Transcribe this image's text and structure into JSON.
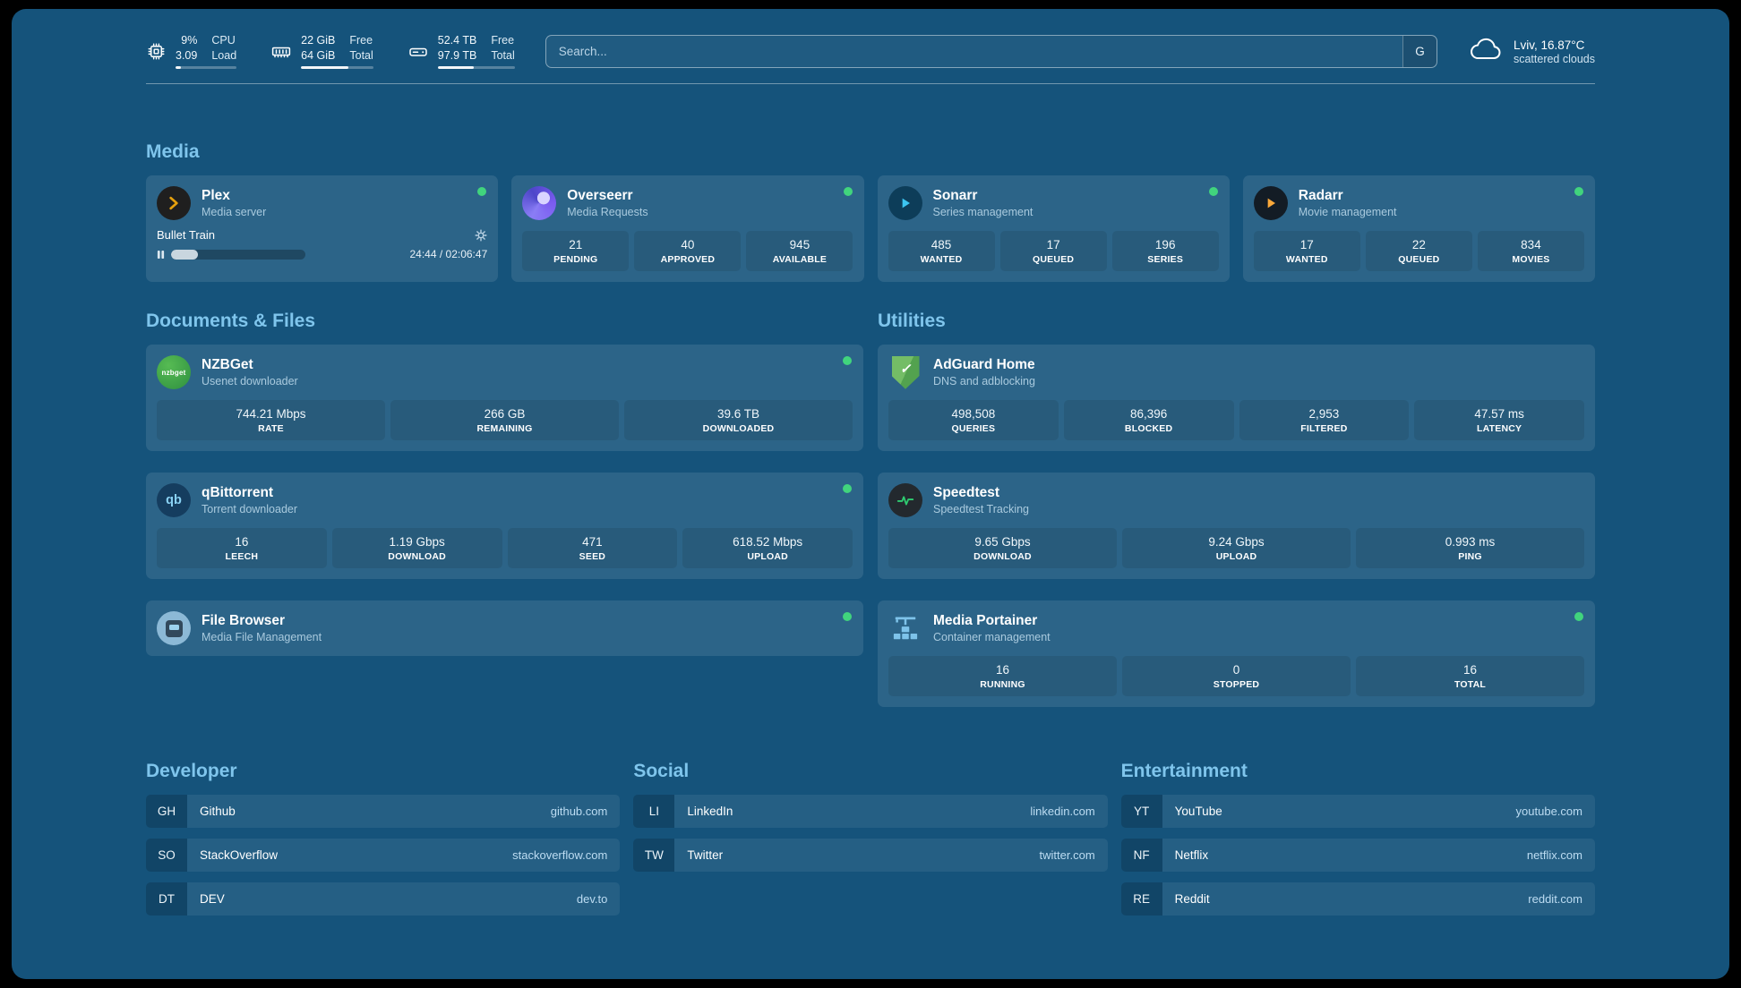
{
  "topbar": {
    "resources": [
      {
        "id": "cpu",
        "col1": [
          "9%",
          "3.09"
        ],
        "col2": [
          "CPU",
          "Load"
        ],
        "bar_percent": 9
      },
      {
        "id": "memory",
        "col1": [
          "22 GiB",
          "64 GiB"
        ],
        "col2": [
          "Free",
          "Total"
        ],
        "bar_percent": 66
      },
      {
        "id": "disk",
        "col1": [
          "52.4 TB",
          "97.9 TB"
        ],
        "col2": [
          "Free",
          "Total"
        ],
        "bar_percent": 47
      }
    ],
    "search": {
      "placeholder": "Search...",
      "provider": "G"
    },
    "weather": {
      "location_temp": "Lviv, 16.87°C",
      "condition": "scattered clouds"
    }
  },
  "sections": {
    "media": {
      "title": "Media",
      "cards": [
        {
          "name": "Plex",
          "desc": "Media server",
          "online": true,
          "now_playing": {
            "title": "Bullet Train",
            "time": "24:44 / 02:06:47",
            "progress_percent": 20
          }
        },
        {
          "name": "Overseerr",
          "desc": "Media Requests",
          "online": true,
          "stats": [
            {
              "value": "21",
              "label": "PENDING"
            },
            {
              "value": "40",
              "label": "APPROVED"
            },
            {
              "value": "945",
              "label": "AVAILABLE"
            }
          ]
        },
        {
          "name": "Sonarr",
          "desc": "Series management",
          "online": true,
          "stats": [
            {
              "value": "485",
              "label": "WANTED"
            },
            {
              "value": "17",
              "label": "QUEUED"
            },
            {
              "value": "196",
              "label": "SERIES"
            }
          ]
        },
        {
          "name": "Radarr",
          "desc": "Movie management",
          "online": true,
          "stats": [
            {
              "value": "17",
              "label": "WANTED"
            },
            {
              "value": "22",
              "label": "QUEUED"
            },
            {
              "value": "834",
              "label": "MOVIES"
            }
          ]
        }
      ]
    },
    "documents": {
      "title": "Documents & Files",
      "cards": [
        {
          "name": "NZBGet",
          "desc": "Usenet downloader",
          "online": true,
          "icon_text": "nzbget",
          "stats": [
            {
              "value": "744.21 Mbps",
              "label": "RATE"
            },
            {
              "value": "266 GB",
              "label": "REMAINING"
            },
            {
              "value": "39.6 TB",
              "label": "DOWNLOADED"
            }
          ]
        },
        {
          "name": "qBittorrent",
          "desc": "Torrent downloader",
          "online": true,
          "icon_text": "qb",
          "stats": [
            {
              "value": "16",
              "label": "LEECH"
            },
            {
              "value": "1.19 Gbps",
              "label": "DOWNLOAD"
            },
            {
              "value": "471",
              "label": "SEED"
            },
            {
              "value": "618.52 Mbps",
              "label": "UPLOAD"
            }
          ]
        },
        {
          "name": "File Browser",
          "desc": "Media File Management",
          "online": true,
          "stats": []
        }
      ]
    },
    "utilities": {
      "title": "Utilities",
      "cards": [
        {
          "name": "AdGuard Home",
          "desc": "DNS and adblocking",
          "online": false,
          "stats": [
            {
              "value": "498,508",
              "label": "QUERIES"
            },
            {
              "value": "86,396",
              "label": "BLOCKED"
            },
            {
              "value": "2,953",
              "label": "FILTERED"
            },
            {
              "value": "47.57 ms",
              "label": "LATENCY"
            }
          ]
        },
        {
          "name": "Speedtest",
          "desc": "Speedtest Tracking",
          "online": false,
          "stats": [
            {
              "value": "9.65 Gbps",
              "label": "DOWNLOAD"
            },
            {
              "value": "9.24 Gbps",
              "label": "UPLOAD"
            },
            {
              "value": "0.993 ms",
              "label": "PING"
            }
          ]
        },
        {
          "name": "Media Portainer",
          "desc": "Container management",
          "online": true,
          "stats": [
            {
              "value": "16",
              "label": "RUNNING"
            },
            {
              "value": "0",
              "label": "STOPPED"
            },
            {
              "value": "16",
              "label": "TOTAL"
            }
          ]
        }
      ]
    }
  },
  "bookmarks": {
    "groups": [
      {
        "title": "Developer",
        "items": [
          {
            "abbr": "GH",
            "name": "Github",
            "url": "github.com"
          },
          {
            "abbr": "SO",
            "name": "StackOverflow",
            "url": "stackoverflow.com"
          },
          {
            "abbr": "DT",
            "name": "DEV",
            "url": "dev.to"
          }
        ]
      },
      {
        "title": "Social",
        "items": [
          {
            "abbr": "LI",
            "name": "LinkedIn",
            "url": "linkedin.com"
          },
          {
            "abbr": "TW",
            "name": "Twitter",
            "url": "twitter.com"
          }
        ]
      },
      {
        "title": "Entertainment",
        "items": [
          {
            "abbr": "YT",
            "name": "YouTube",
            "url": "youtube.com"
          },
          {
            "abbr": "NF",
            "name": "Netflix",
            "url": "netflix.com"
          },
          {
            "abbr": "RE",
            "name": "Reddit",
            "url": "reddit.com"
          }
        ]
      }
    ]
  },
  "icons": {
    "cpu-icon": "chip outline",
    "memory-icon": "ram stick outline",
    "disk-icon": "hard drive outline",
    "cloud-icon": "weather cloud outline",
    "gear-icon": "settings gear",
    "pause-icon": "pause bars",
    "plex-icon": "orange chevron on black circle",
    "overseerr-icon": "purple swirl circle",
    "sonarr-icon": "blue play triangle circle",
    "radarr-icon": "orange play triangle circle",
    "nzbget-icon": "green circle wordmark",
    "qbittorrent-icon": "qb lettermark circle",
    "filebrowser-icon": "blue-grey disk circle",
    "adguard-shield-icon": "green shield check",
    "speedtest-icon": "green pulse line circle",
    "portainer-icon": "crane with containers",
    "status-online-dot": "green dot"
  },
  "colors": {
    "background": "#15537b",
    "card": "#2a6489",
    "section_header": "#7fc5ec",
    "status_online": "#41d47d",
    "plex_accent": "#e5a00d",
    "sonarr_accent": "#3cc5f1",
    "radarr_accent": "#f9a83a",
    "nzbget_accent": "#3fa63f",
    "adguard_accent": "#5fae5e",
    "speedtest_accent": "#2ecc71",
    "portainer_accent": "#7ec3ea"
  }
}
